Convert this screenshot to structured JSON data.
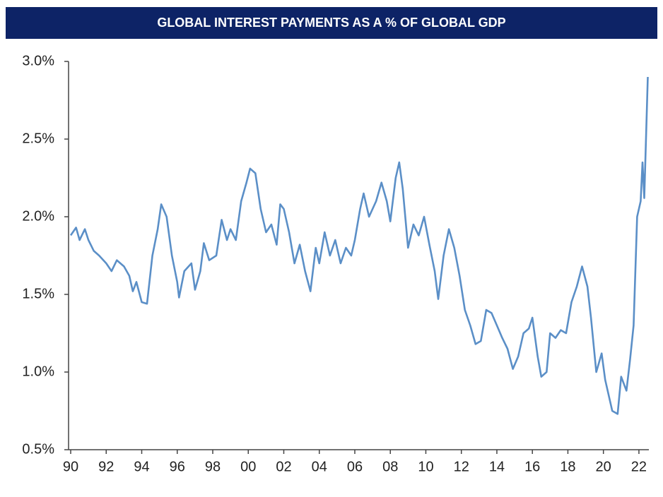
{
  "chart_data": {
    "type": "line",
    "title": "GLOBAL INTEREST PAYMENTS AS A % OF GLOBAL GDP",
    "series": [
      {
        "name": "Global interest payments",
        "color": "#5b8fc7",
        "x": [
          1990.0,
          1990.3,
          1990.5,
          1990.8,
          1991.0,
          1991.3,
          1991.6,
          1992.0,
          1992.3,
          1992.6,
          1993.0,
          1993.3,
          1993.5,
          1993.7,
          1994.0,
          1994.3,
          1994.6,
          1994.9,
          1995.1,
          1995.4,
          1995.7,
          1996.0,
          1996.1,
          1996.4,
          1996.8,
          1997.0,
          1997.3,
          1997.5,
          1997.8,
          1998.2,
          1998.5,
          1998.8,
          1999.0,
          1999.3,
          1999.6,
          1999.9,
          2000.1,
          2000.4,
          2000.7,
          2001.0,
          2001.3,
          2001.6,
          2001.8,
          2002.0,
          2002.3,
          2002.6,
          2002.9,
          2003.2,
          2003.5,
          2003.8,
          2004.0,
          2004.3,
          2004.6,
          2004.9,
          2005.2,
          2005.5,
          2005.8,
          2006.0,
          2006.3,
          2006.5,
          2006.8,
          2007.2,
          2007.5,
          2007.8,
          2008.0,
          2008.3,
          2008.5,
          2008.7,
          2009.0,
          2009.3,
          2009.6,
          2009.9,
          2010.2,
          2010.5,
          2010.7,
          2011.0,
          2011.3,
          2011.6,
          2011.9,
          2012.2,
          2012.5,
          2012.8,
          2013.1,
          2013.4,
          2013.7,
          2014.0,
          2014.3,
          2014.6,
          2014.9,
          2015.2,
          2015.5,
          2015.8,
          2016.0,
          2016.3,
          2016.5,
          2016.8,
          2017.0,
          2017.3,
          2017.6,
          2017.9,
          2018.2,
          2018.5,
          2018.8,
          2019.1,
          2019.3,
          2019.6,
          2019.9,
          2020.1,
          2020.3,
          2020.5,
          2020.8,
          2021.0,
          2021.3,
          2021.5,
          2021.7,
          2021.9,
          2022.1,
          2022.2,
          2022.3,
          2022.5
        ],
        "values": [
          1.88,
          1.93,
          1.85,
          1.92,
          1.85,
          1.78,
          1.75,
          1.7,
          1.65,
          1.72,
          1.68,
          1.62,
          1.52,
          1.58,
          1.45,
          1.44,
          1.75,
          1.92,
          2.08,
          2.0,
          1.75,
          1.58,
          1.48,
          1.65,
          1.7,
          1.53,
          1.65,
          1.83,
          1.72,
          1.75,
          1.98,
          1.85,
          1.92,
          1.85,
          2.1,
          2.22,
          2.31,
          2.28,
          2.05,
          1.9,
          1.95,
          1.82,
          2.08,
          2.05,
          1.9,
          1.7,
          1.82,
          1.65,
          1.52,
          1.8,
          1.7,
          1.9,
          1.75,
          1.85,
          1.7,
          1.8,
          1.75,
          1.85,
          2.05,
          2.15,
          2.0,
          2.1,
          2.22,
          2.1,
          1.97,
          2.25,
          2.35,
          2.18,
          1.8,
          1.95,
          1.88,
          2.0,
          1.82,
          1.65,
          1.47,
          1.75,
          1.92,
          1.8,
          1.62,
          1.4,
          1.3,
          1.18,
          1.2,
          1.4,
          1.38,
          1.3,
          1.22,
          1.15,
          1.02,
          1.1,
          1.25,
          1.28,
          1.35,
          1.1,
          0.97,
          1.0,
          1.25,
          1.22,
          1.27,
          1.25,
          1.45,
          1.55,
          1.68,
          1.55,
          1.35,
          1.0,
          1.12,
          0.95,
          0.85,
          0.75,
          0.73,
          0.97,
          0.88,
          1.08,
          1.3,
          2.0,
          2.1,
          2.35,
          2.12,
          2.9
        ]
      }
    ],
    "xlim": [
      1989.88,
      2022.56
    ],
    "xticks": [
      {
        "value": 1990,
        "label": "90"
      },
      {
        "value": 1992,
        "label": "92"
      },
      {
        "value": 1994,
        "label": "94"
      },
      {
        "value": 1996,
        "label": "96"
      },
      {
        "value": 1998,
        "label": "98"
      },
      {
        "value": 2000,
        "label": "00"
      },
      {
        "value": 2002,
        "label": "02"
      },
      {
        "value": 2004,
        "label": "04"
      },
      {
        "value": 2006,
        "label": "06"
      },
      {
        "value": 2008,
        "label": "08"
      },
      {
        "value": 2010,
        "label": "10"
      },
      {
        "value": 2012,
        "label": "12"
      },
      {
        "value": 2014,
        "label": "14"
      },
      {
        "value": 2016,
        "label": "16"
      },
      {
        "value": 2018,
        "label": "18"
      },
      {
        "value": 2020,
        "label": "20"
      },
      {
        "value": 2022,
        "label": "22"
      }
    ],
    "ylim": [
      0.5,
      3.0
    ],
    "yticks": [
      {
        "value": 0.5,
        "label": "0.5%"
      },
      {
        "value": 1.0,
        "label": "1.0%"
      },
      {
        "value": 1.5,
        "label": "1.5%"
      },
      {
        "value": 2.0,
        "label": "2.0%"
      },
      {
        "value": 2.5,
        "label": "2.5%"
      },
      {
        "value": 3.0,
        "label": "3.0%"
      }
    ],
    "grid": false
  }
}
